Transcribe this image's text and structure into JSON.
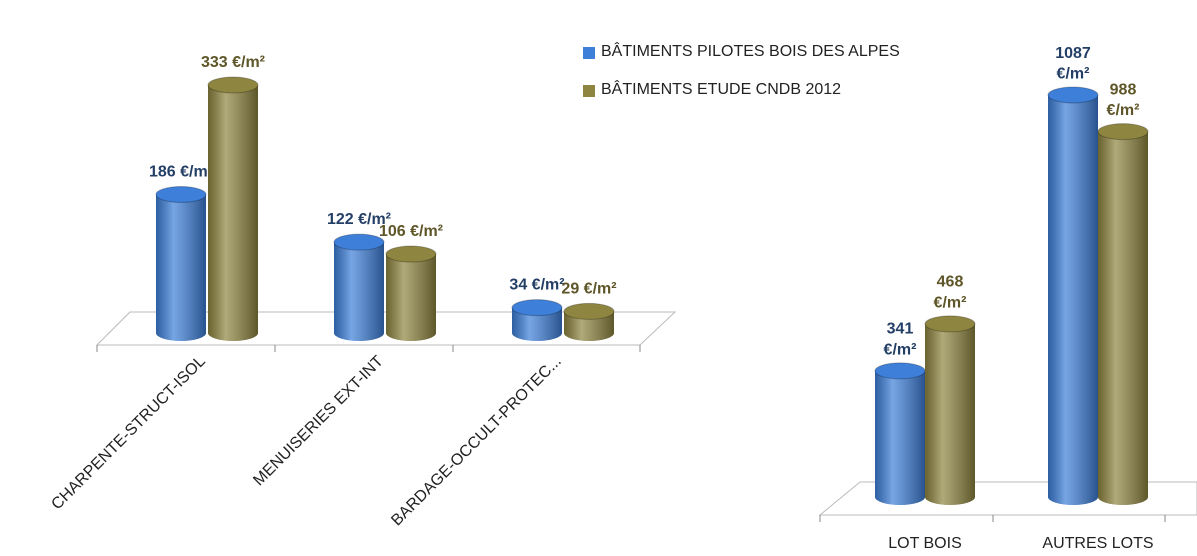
{
  "chart_data": [
    {
      "type": "bar",
      "categories": [
        "CHARPENTE-STRUCT-ISOL",
        "MENUISERIES EXT-INT",
        "BARDAGE-OCCULT-PROTEC..."
      ],
      "series": [
        {
          "name": "BÂTIMENTS PILOTES BOIS DES ALPES",
          "color": "#3d7fd9",
          "label_color": "#243f66",
          "values": [
            186,
            122,
            34
          ],
          "value_labels": [
            "186 €/m²",
            "122 €/m²",
            "34 €/m²"
          ]
        },
        {
          "name": "BÂTIMENTS ETUDE CNDB 2012",
          "color": "#8e8540",
          "label_color": "#5e5628",
          "values": [
            333,
            106,
            29
          ],
          "value_labels": [
            "333 €/m²",
            "106 €/m²",
            "29 €/m²"
          ]
        }
      ]
    },
    {
      "type": "bar",
      "categories": [
        "LOT BOIS",
        "AUTRES LOTS"
      ],
      "series": [
        {
          "color": "#3d7fd9",
          "label_color": "#243f66",
          "values": [
            341,
            1087
          ],
          "value_labels": [
            "341 €/m²",
            "1087 €/m²"
          ]
        },
        {
          "color": "#8e8540",
          "label_color": "#5e5628",
          "values": [
            468,
            988
          ],
          "value_labels": [
            "468 €/m²",
            "988 €/m²"
          ]
        }
      ]
    }
  ]
}
